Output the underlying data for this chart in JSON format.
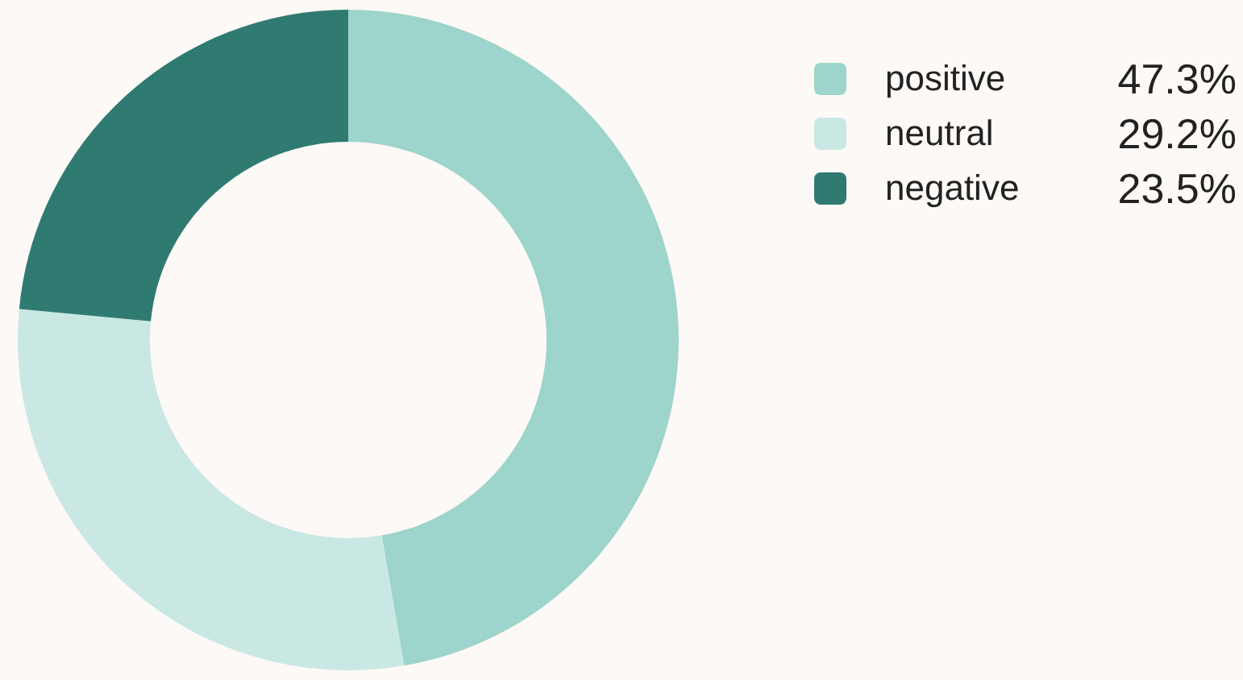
{
  "chart_data": {
    "type": "donut",
    "categories": [
      "positive",
      "neutral",
      "negative"
    ],
    "values": [
      47.3,
      29.2,
      23.5
    ],
    "colors": [
      "#9dd4cb",
      "#c9e8e3",
      "#2f7b72"
    ],
    "value_labels": [
      "47.3%",
      "29.2%",
      "23.5%"
    ],
    "legend": "top right"
  }
}
